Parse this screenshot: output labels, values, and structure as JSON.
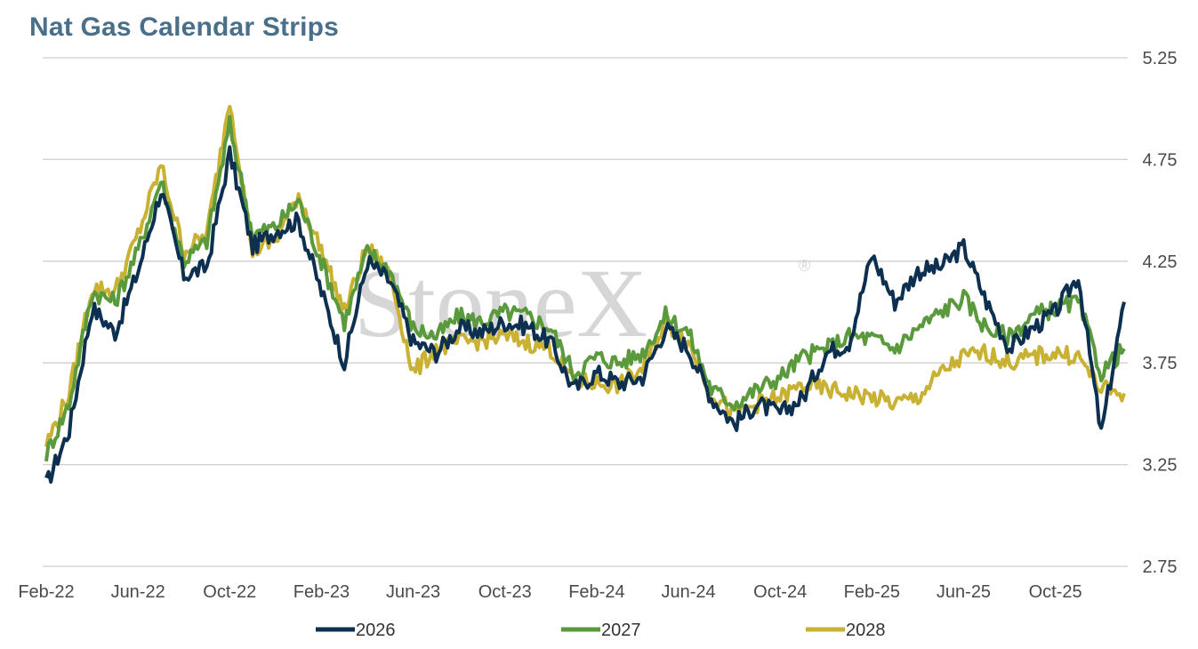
{
  "title": "Nat Gas Calendar Strips",
  "watermark": "StoneX",
  "watermark_mark": "®",
  "colors": {
    "2026": "#0e3050",
    "2027": "#5a9a3c",
    "2028": "#c9b233",
    "grid": "#cfcfcf",
    "title": "#4a6f8a"
  },
  "chart_data": {
    "type": "line",
    "title": "Nat Gas Calendar Strips",
    "xlabel": "",
    "ylabel": "",
    "ylim": [
      2.75,
      5.25
    ],
    "y_axis_position": "right",
    "yticks": [
      "5.25",
      "4.75",
      "4.25",
      "3.75",
      "3.25",
      "2.75"
    ],
    "xticks": [
      "Feb-22",
      "Jun-22",
      "Oct-22",
      "Feb-23",
      "Jun-23",
      "Oct-23",
      "Feb-24",
      "Jun-24",
      "Oct-24",
      "Feb-25",
      "Jun-25",
      "Oct-25"
    ],
    "grid": true,
    "legend_position": "bottom",
    "x": [
      "Feb-22",
      "Mar-22",
      "Apr-22",
      "May-22",
      "Jun-22",
      "Jul-22",
      "Aug-22",
      "Sep-22",
      "Oct-22",
      "Nov-22",
      "Dec-22",
      "Jan-23",
      "Feb-23",
      "Mar-23",
      "Apr-23",
      "May-23",
      "Jun-23",
      "Jul-23",
      "Aug-23",
      "Sep-23",
      "Oct-23",
      "Nov-23",
      "Dec-23",
      "Jan-24",
      "Feb-24",
      "Mar-24",
      "Apr-24",
      "May-24",
      "Jun-24",
      "Jul-24",
      "Aug-24",
      "Sep-24",
      "Oct-24",
      "Nov-24",
      "Dec-24",
      "Jan-25",
      "Feb-25",
      "Mar-25",
      "Apr-25",
      "May-25",
      "Jun-25",
      "Jul-25",
      "Aug-25",
      "Sep-25",
      "Oct-25",
      "Nov-25",
      "Dec-25",
      "Jan-26"
    ],
    "series": [
      {
        "name": "2026",
        "values": [
          3.15,
          3.42,
          4.02,
          3.9,
          4.2,
          4.6,
          4.18,
          4.22,
          4.78,
          4.32,
          4.4,
          4.45,
          4.1,
          3.75,
          4.25,
          4.15,
          3.85,
          3.8,
          3.92,
          3.9,
          3.95,
          3.93,
          3.85,
          3.62,
          3.7,
          3.65,
          3.68,
          3.92,
          3.82,
          3.58,
          3.45,
          3.55,
          3.5,
          3.58,
          3.8,
          3.85,
          4.28,
          4.05,
          4.2,
          4.22,
          4.32,
          4.05,
          3.82,
          3.92,
          4.0,
          4.18,
          3.4,
          4.05
        ]
      },
      {
        "name": "2027",
        "values": [
          3.3,
          3.55,
          4.1,
          4.05,
          4.3,
          4.65,
          4.25,
          4.35,
          4.92,
          4.38,
          4.42,
          4.55,
          4.25,
          3.95,
          4.3,
          4.2,
          3.92,
          3.88,
          3.98,
          3.95,
          4.0,
          3.98,
          3.92,
          3.7,
          3.78,
          3.75,
          3.8,
          3.98,
          3.9,
          3.62,
          3.55,
          3.62,
          3.68,
          3.78,
          3.82,
          3.88,
          3.87,
          3.82,
          3.92,
          4.0,
          4.07,
          3.92,
          3.88,
          3.98,
          4.02,
          4.05,
          3.7,
          3.82
        ]
      },
      {
        "name": "2028",
        "values": [
          3.35,
          3.6,
          4.12,
          4.1,
          4.38,
          4.72,
          4.3,
          4.38,
          5.05,
          4.3,
          4.35,
          4.58,
          4.3,
          4.0,
          4.32,
          4.18,
          3.7,
          3.82,
          3.85,
          3.86,
          3.88,
          3.85,
          3.82,
          3.66,
          3.65,
          3.64,
          3.72,
          3.95,
          3.85,
          3.6,
          3.5,
          3.55,
          3.58,
          3.64,
          3.62,
          3.6,
          3.58,
          3.55,
          3.58,
          3.7,
          3.78,
          3.8,
          3.75,
          3.78,
          3.8,
          3.78,
          3.62,
          3.6
        ]
      }
    ]
  }
}
